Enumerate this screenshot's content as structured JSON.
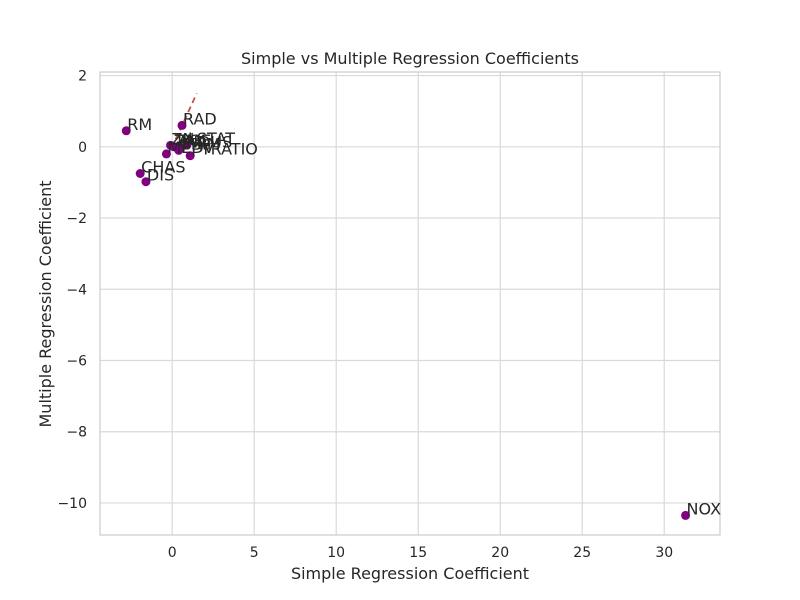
{
  "chart_data": {
    "type": "scatter",
    "title": "Simple vs Multiple Regression Coefficients",
    "xlabel": "Simple Regression Coefficient",
    "ylabel": "Multiple Regression Coefficient",
    "xlim": [
      -4.4,
      33.4
    ],
    "ylim": [
      -10.9,
      2.1
    ],
    "xticks": [
      0,
      5,
      10,
      15,
      20,
      25,
      30
    ],
    "yticks": [
      2,
      0,
      -2,
      -4,
      -6,
      -8,
      -10
    ],
    "grid": true,
    "point_color": "#800080",
    "reference_line_color": "#c44e52",
    "reference_line": {
      "x": [
        -0.3,
        1.5
      ],
      "y": [
        -0.3,
        1.5
      ]
    },
    "points": [
      {
        "label": "RM",
        "x": -2.8,
        "y": 0.45
      },
      {
        "label": "RAD",
        "x": 0.6,
        "y": 0.6
      },
      {
        "label": "LSTAT",
        "x": 0.9,
        "y": 0.05
      },
      {
        "label": "ZN",
        "x": -0.1,
        "y": 0.04
      },
      {
        "label": "TAX",
        "x": 0.1,
        "y": 0.0
      },
      {
        "label": "AGE",
        "x": 0.3,
        "y": 0.0
      },
      {
        "label": "INDUS",
        "x": 0.5,
        "y": -0.05
      },
      {
        "label": "CRIM",
        "x": 0.4,
        "y": -0.1
      },
      {
        "label": "MEDV",
        "x": -0.35,
        "y": -0.2
      },
      {
        "label": "PTRATIO",
        "x": 1.1,
        "y": -0.25
      },
      {
        "label": "CHAS",
        "x": -1.95,
        "y": -0.75
      },
      {
        "label": "DIS",
        "x": -1.6,
        "y": -0.98
      },
      {
        "label": "NOX",
        "x": 31.3,
        "y": -10.35
      }
    ]
  }
}
